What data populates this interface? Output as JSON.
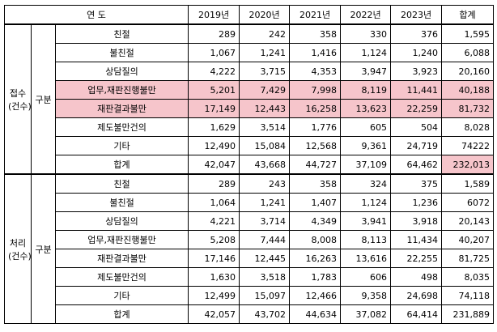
{
  "header": {
    "label": "연 도",
    "years": [
      "2019년",
      "2020년",
      "2021년",
      "2022년",
      "2023년"
    ],
    "total": "합계"
  },
  "groups": [
    {
      "label": [
        "접수",
        "(건수)"
      ],
      "sub": "구분",
      "rows": [
        {
          "name": "친절",
          "values": [
            "289",
            "242",
            "358",
            "330",
            "376",
            "1,595"
          ]
        },
        {
          "name": "불친절",
          "values": [
            "1,067",
            "1,241",
            "1,416",
            "1,124",
            "1,240",
            "6,088"
          ]
        },
        {
          "name": "상담질의",
          "values": [
            "4,222",
            "3,715",
            "4,353",
            "3,947",
            "3,923",
            "20,160"
          ]
        },
        {
          "name": "업무,재판진행불만",
          "values": [
            "5,201",
            "7,429",
            "7,998",
            "8,119",
            "11,441",
            "40,188"
          ]
        },
        {
          "name": "재판결과불만",
          "values": [
            "17,149",
            "12,443",
            "16,258",
            "13,623",
            "22,259",
            "81,732"
          ]
        },
        {
          "name": "제도불만건의",
          "values": [
            "1,629",
            "3,514",
            "1,776",
            "605",
            "504",
            "8,028"
          ]
        },
        {
          "name": "기타",
          "values": [
            "12,490",
            "15,084",
            "12,568",
            "9,361",
            "24,719",
            "74222"
          ]
        },
        {
          "name": "합계",
          "values": [
            "42,047",
            "43,668",
            "44,727",
            "37,109",
            "64,462",
            "232,013"
          ]
        }
      ]
    },
    {
      "label": [
        "처리",
        "(건수)"
      ],
      "sub": "구분",
      "rows": [
        {
          "name": "친절",
          "values": [
            "289",
            "243",
            "358",
            "324",
            "375",
            "1,589"
          ]
        },
        {
          "name": "불친절",
          "values": [
            "1,064",
            "1,241",
            "1,407",
            "1,124",
            "1,236",
            "6072"
          ]
        },
        {
          "name": "상담질의",
          "values": [
            "4,221",
            "3,714",
            "4,349",
            "3,941",
            "3,918",
            "20,143"
          ]
        },
        {
          "name": "업무,재판진행불만",
          "values": [
            "5,208",
            "7,444",
            "8,008",
            "8,113",
            "11,434",
            "40,207"
          ]
        },
        {
          "name": "재판결과불만",
          "values": [
            "17,146",
            "12,445",
            "16,263",
            "13,616",
            "22,255",
            "81,725"
          ]
        },
        {
          "name": "제도불만건의",
          "values": [
            "1,630",
            "3,518",
            "1,783",
            "606",
            "498",
            "8,035"
          ]
        },
        {
          "name": "기타",
          "values": [
            "12,499",
            "15,097",
            "12,466",
            "9,358",
            "24,698",
            "74,118"
          ]
        },
        {
          "name": "합계",
          "values": [
            "42,057",
            "43,702",
            "44,634",
            "37,082",
            "64,414",
            "231,889"
          ]
        }
      ]
    }
  ]
}
